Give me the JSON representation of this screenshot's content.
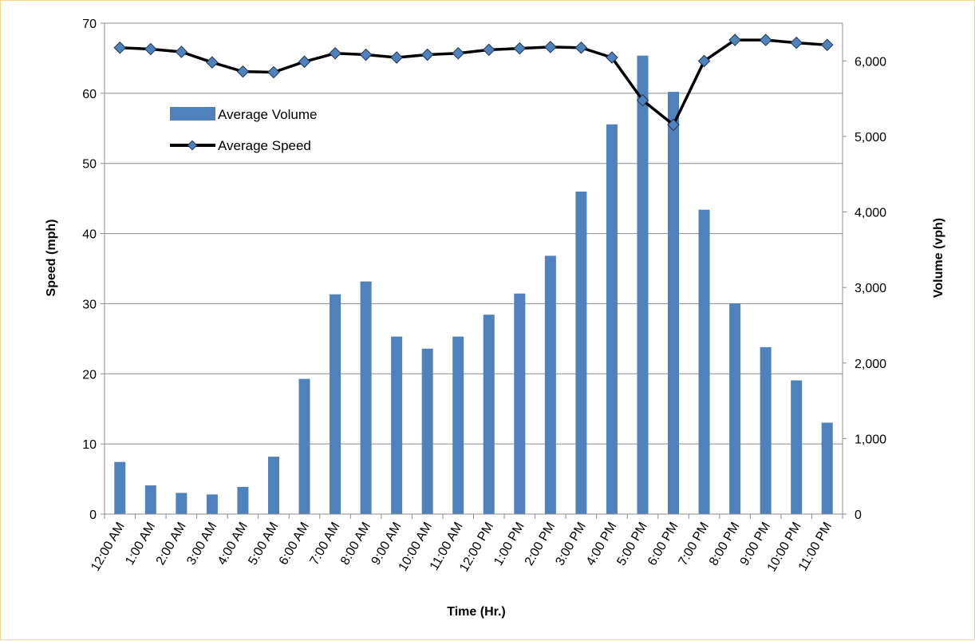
{
  "chart_data": {
    "type": "bar",
    "categories": [
      "12:00 AM",
      "1:00 AM",
      "2:00 AM",
      "3:00 AM",
      "4:00 AM",
      "5:00 AM",
      "6:00 AM",
      "7:00 AM",
      "8:00 AM",
      "9:00 AM",
      "10:00 AM",
      "11:00 AM",
      "12:00 PM",
      "1:00 PM",
      "2:00 PM",
      "3:00 PM",
      "4:00 PM",
      "5:00 PM",
      "6:00 PM",
      "7:00 PM",
      "8:00 PM",
      "9:00 PM",
      "10:00 PM",
      "11:00 PM"
    ],
    "series": [
      {
        "name": "Average Volume",
        "type": "bar",
        "axis": "right",
        "color": "#4f81bd",
        "values": [
          690,
          380,
          280,
          260,
          360,
          760,
          1790,
          2910,
          3080,
          2350,
          2190,
          2350,
          2640,
          2920,
          3420,
          4270,
          5160,
          6070,
          5590,
          4030,
          2790,
          2210,
          1770,
          1210
        ]
      },
      {
        "name": "Average Speed",
        "type": "line",
        "axis": "left",
        "color": "#000000",
        "marker_color": "#4f81bd",
        "values": [
          66.5,
          66.3,
          65.9,
          64.4,
          63.1,
          63.0,
          64.5,
          65.7,
          65.5,
          65.1,
          65.5,
          65.7,
          66.2,
          66.4,
          66.6,
          66.5,
          65.1,
          59.0,
          55.5,
          64.6,
          67.6,
          67.6,
          67.2,
          66.9
        ]
      }
    ],
    "xlabel": "Time (Hr.)",
    "ylabel": "Speed (mph)",
    "y2label": "Volume (vph)",
    "ylim": [
      0,
      70
    ],
    "yticks": [
      0,
      10,
      20,
      30,
      40,
      50,
      60,
      70
    ],
    "y2lim": [
      0,
      6500
    ],
    "y2ticks": [
      0,
      1000,
      2000,
      3000,
      4000,
      5000,
      6000
    ],
    "y2tick_labels": [
      "0",
      "1,000",
      "2,000",
      "3,000",
      "4,000",
      "5,000",
      "6,000"
    ],
    "grid": true,
    "legend": [
      "Average Volume",
      "Average Speed"
    ],
    "legend_position": "upper-left-inside",
    "gridline_color": "#8c8c8c"
  }
}
